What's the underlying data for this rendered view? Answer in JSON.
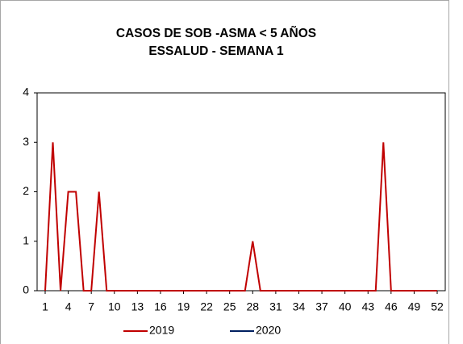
{
  "chart_data": {
    "type": "line",
    "title": [
      "CASOS DE SOB -ASMA < 5 AÑOS",
      "ESSALUD  - SEMANA 1"
    ],
    "x": [
      1,
      2,
      3,
      4,
      5,
      6,
      7,
      8,
      9,
      10,
      11,
      12,
      13,
      14,
      15,
      16,
      17,
      18,
      19,
      20,
      21,
      22,
      23,
      24,
      25,
      26,
      27,
      28,
      29,
      30,
      31,
      32,
      33,
      34,
      35,
      36,
      37,
      38,
      39,
      40,
      41,
      42,
      43,
      44,
      45,
      46,
      47,
      48,
      49,
      50,
      51,
      52
    ],
    "series": [
      {
        "name": "2019",
        "color": "#c00000",
        "values": [
          0,
          3,
          0,
          2,
          2,
          0,
          0,
          2,
          0,
          0,
          0,
          0,
          0,
          0,
          0,
          0,
          0,
          0,
          0,
          0,
          0,
          0,
          0,
          0,
          0,
          0,
          0,
          1,
          0,
          0,
          0,
          0,
          0,
          0,
          0,
          0,
          0,
          0,
          0,
          0,
          0,
          0,
          0,
          0,
          3,
          0,
          0,
          0,
          0,
          0,
          0,
          0
        ]
      },
      {
        "name": "2020",
        "color": "#002060",
        "values": [
          0,
          null,
          null,
          null,
          null,
          null,
          null,
          null,
          null,
          null,
          null,
          null,
          null,
          null,
          null,
          null,
          null,
          null,
          null,
          null,
          null,
          null,
          null,
          null,
          null,
          null,
          null,
          null,
          null,
          null,
          null,
          null,
          null,
          null,
          null,
          null,
          null,
          null,
          null,
          null,
          null,
          null,
          null,
          null,
          null,
          null,
          null,
          null,
          null,
          null,
          null,
          null
        ]
      }
    ],
    "xlim": [
      1,
      52
    ],
    "xticks": [
      1,
      4,
      7,
      10,
      13,
      16,
      19,
      22,
      25,
      28,
      31,
      34,
      37,
      40,
      43,
      46,
      49,
      52
    ],
    "ylim": [
      0,
      4
    ],
    "yticks": [
      0,
      1,
      2,
      3,
      4
    ],
    "grid": false,
    "legend": "bottom"
  }
}
